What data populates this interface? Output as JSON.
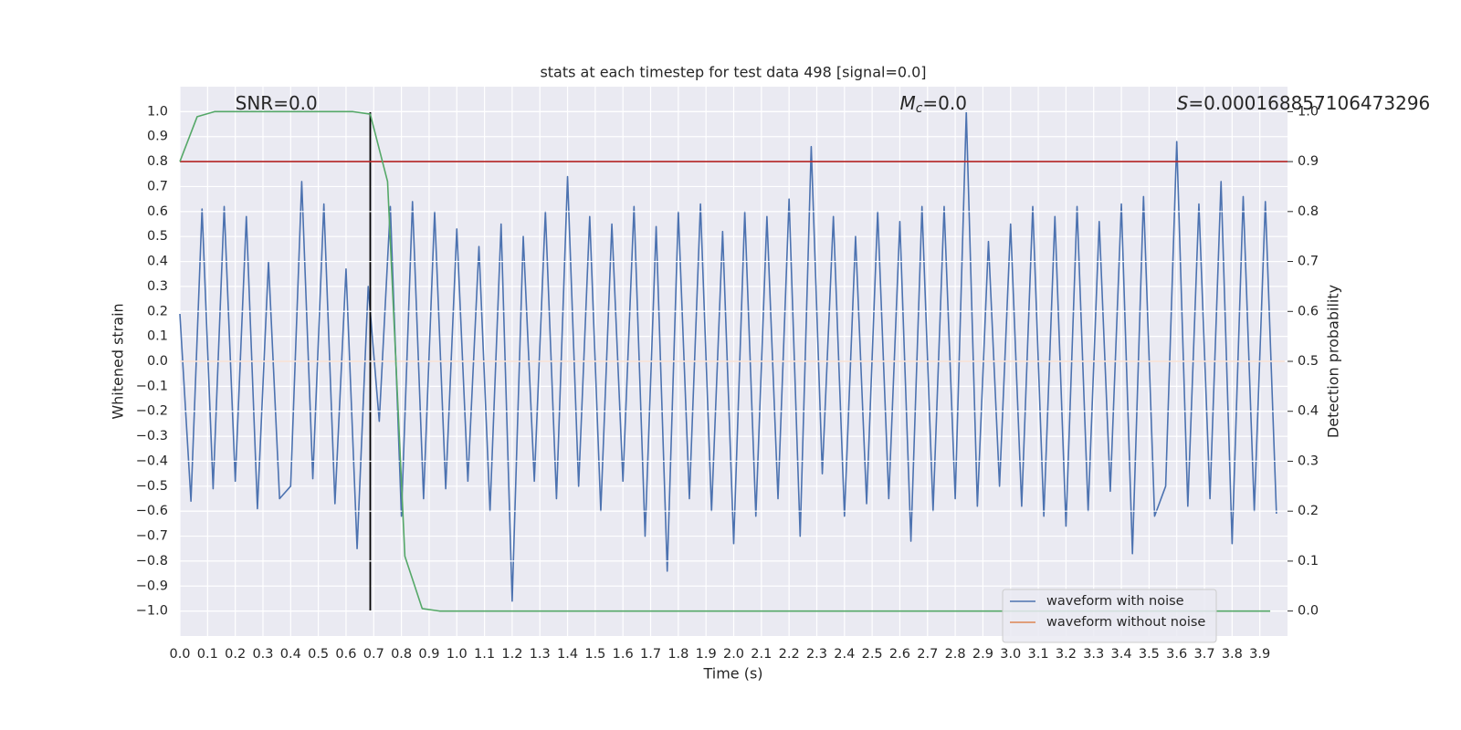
{
  "chart_data": {
    "type": "line",
    "title": "stats at each timestep for test data 498 [signal=0.0]",
    "xlabel": "Time (s)",
    "ylabel": "Whitened strain",
    "y2label": "Detection probability",
    "xlim": [
      0,
      4.0
    ],
    "ylim": [
      -1.1,
      1.1
    ],
    "y2lim": [
      -0.05,
      1.05
    ],
    "grid": true,
    "background": "#eaeaf2",
    "legend": "lower right",
    "xticks": [
      {
        "value": 0,
        "label": "0.0"
      },
      0.1,
      0.2,
      0.3,
      0.4,
      0.5,
      0.6,
      0.7,
      0.8,
      0.9,
      {
        "value": 1,
        "label": "1.0"
      },
      1.1,
      1.2,
      1.3,
      1.4,
      1.5,
      1.6,
      1.7,
      1.8,
      1.9,
      {
        "value": 2,
        "label": "2.0"
      },
      2.1,
      2.2,
      2.3,
      2.4,
      2.5,
      2.6,
      2.7,
      2.8,
      2.9,
      {
        "value": 3,
        "label": "3.0"
      },
      3.1,
      3.2,
      3.3,
      3.4,
      3.5,
      3.6,
      3.7,
      3.8,
      3.9
    ],
    "yticks": [
      {
        "value": -1,
        "label": "−1.0"
      },
      {
        "value": -0.9,
        "label": "−0.9"
      },
      {
        "value": -0.8,
        "label": "−0.8"
      },
      {
        "value": -0.7,
        "label": "−0.7"
      },
      {
        "value": -0.6,
        "label": "−0.6"
      },
      {
        "value": -0.5,
        "label": "−0.5"
      },
      {
        "value": -0.4,
        "label": "−0.4"
      },
      {
        "value": -0.3,
        "label": "−0.3"
      },
      {
        "value": -0.2,
        "label": "−0.2"
      },
      {
        "value": -0.1,
        "label": "−0.1"
      },
      {
        "value": 0,
        "label": "0.0"
      },
      0.1,
      0.2,
      0.3,
      0.4,
      0.5,
      0.6,
      0.7,
      0.8,
      0.9,
      {
        "value": 1,
        "label": "1.0"
      }
    ],
    "y2ticks": [
      {
        "value": 0,
        "label": "0.0"
      },
      0.1,
      0.2,
      0.3,
      0.4,
      0.5,
      0.6,
      0.7,
      0.8,
      0.9,
      {
        "value": 1,
        "label": "1.0"
      }
    ],
    "series": [
      {
        "name": "waveform with noise",
        "color": "#4c72b0",
        "x": [
          0,
          0.04,
          0.08,
          0.12,
          0.16,
          0.2,
          0.24,
          0.28,
          0.32,
          0.36,
          0.4,
          0.44,
          0.48,
          0.52,
          0.56,
          0.6,
          0.64,
          0.68,
          0.72,
          0.76,
          0.8,
          0.84,
          0.88,
          0.92,
          0.96,
          1.0,
          1.04,
          1.08,
          1.12,
          1.16,
          1.2,
          1.24,
          1.28,
          1.32,
          1.36,
          1.4,
          1.44,
          1.48,
          1.52,
          1.56,
          1.6,
          1.64,
          1.68,
          1.72,
          1.76,
          1.8,
          1.84,
          1.88,
          1.92,
          1.96,
          2.0,
          2.04,
          2.08,
          2.12,
          2.16,
          2.2,
          2.24,
          2.28,
          2.32,
          2.36,
          2.4,
          2.44,
          2.48,
          2.52,
          2.56,
          2.6,
          2.64,
          2.68,
          2.72,
          2.76,
          2.8,
          2.84,
          2.88,
          2.92,
          2.96,
          3.0,
          3.04,
          3.08,
          3.12,
          3.16,
          3.2,
          3.24,
          3.28,
          3.32,
          3.36,
          3.4,
          3.44,
          3.48,
          3.52,
          3.56,
          3.6,
          3.64,
          3.68,
          3.72,
          3.76,
          3.8,
          3.84,
          3.88,
          3.92,
          3.96
        ],
        "values": [
          0.19,
          -0.56,
          0.61,
          -0.51,
          0.62,
          -0.48,
          0.58,
          -0.59,
          0.4,
          -0.55,
          -0.5,
          0.72,
          -0.47,
          0.63,
          -0.57,
          0.37,
          -0.75,
          0.3,
          -0.24,
          0.62,
          -0.62,
          0.64,
          -0.55,
          0.6,
          -0.51,
          0.53,
          -0.48,
          0.46,
          -0.6,
          0.55,
          -0.96,
          0.5,
          -0.48,
          0.6,
          -0.55,
          0.74,
          -0.5,
          0.58,
          -0.6,
          0.55,
          -0.48,
          0.62,
          -0.7,
          0.54,
          -0.84,
          0.6,
          -0.55,
          0.63,
          -0.6,
          0.52,
          -0.73,
          0.6,
          -0.62,
          0.58,
          -0.55,
          0.65,
          -0.7,
          0.86,
          -0.45,
          0.58,
          -0.62,
          0.5,
          -0.57,
          0.6,
          -0.55,
          0.56,
          -0.72,
          0.62,
          -0.6,
          0.62,
          -0.55,
          1.0,
          -0.58,
          0.48,
          -0.5,
          0.55,
          -0.58,
          0.62,
          -0.62,
          0.58,
          -0.66,
          0.62,
          -0.6,
          0.56,
          -0.52,
          0.63,
          -0.77,
          0.66,
          -0.62,
          -0.5,
          0.88,
          -0.58,
          0.63,
          -0.55,
          0.72,
          -0.73,
          0.66,
          -0.6,
          0.64,
          -0.61
        ]
      },
      {
        "name": "waveform without noise",
        "color": "#dd8452",
        "x": [
          0,
          3.99
        ],
        "values": [
          0,
          0
        ]
      },
      {
        "color": "#55a868",
        "axis": "y2",
        "x": [
          0,
          0.0625,
          0.125,
          0.625,
          0.6875,
          0.75,
          0.8125,
          0.875,
          0.9375,
          3.9375
        ],
        "values": [
          0.9,
          0.99,
          1.0,
          1.0,
          0.995,
          0.86,
          0.11,
          0.005,
          0.0,
          0.0
        ]
      }
    ],
    "hline": {
      "value": 0.9,
      "axis": "y2",
      "color": "#b22222"
    },
    "vline": {
      "x": 0.6875,
      "ymin": -1,
      "ymax": 1,
      "color": "#000000"
    },
    "annotations": [
      {
        "parts": [
          {
            "text": "SNR=0.0"
          }
        ]
      },
      {
        "parts": [
          {
            "text": "M",
            "style": "italic"
          },
          {
            "text": "c",
            "style": "italic-sub"
          },
          {
            "text": "=0.0"
          }
        ]
      },
      {
        "parts": [
          {
            "text": "S",
            "style": "italic"
          },
          {
            "text": "=0.000168857106473296"
          }
        ]
      }
    ]
  }
}
